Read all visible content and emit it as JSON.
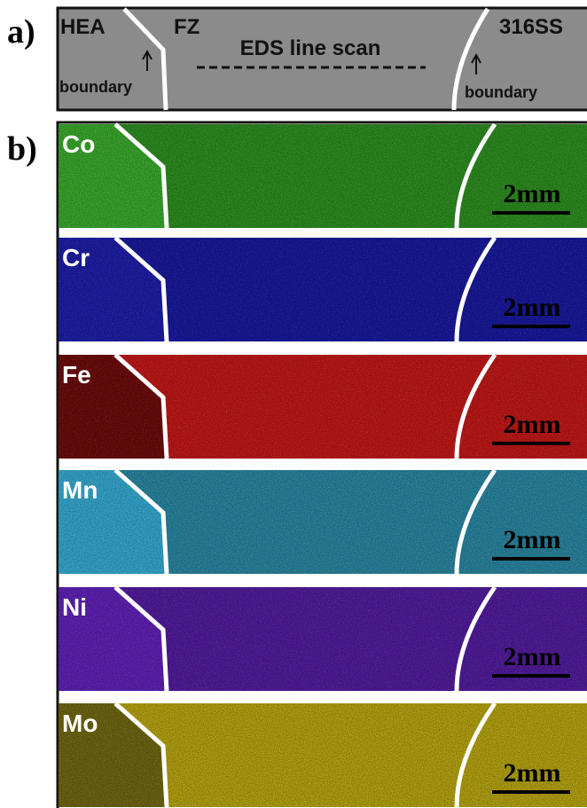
{
  "panel_labels": {
    "a": "a)",
    "b": "b)"
  },
  "panel_a": {
    "left_material": "HEA",
    "fusion_zone": "FZ",
    "title": "EDS line scan",
    "right_material": "316SS",
    "boundary_labels": [
      "boundary",
      "boundary"
    ]
  },
  "maps": [
    {
      "element": "Co",
      "scale_bar": "2mm",
      "color": "#2b8a1e",
      "left_color": "#37a52a"
    },
    {
      "element": "Cr",
      "scale_bar": "2mm",
      "color": "#17179a",
      "left_color": "#1c1ca4"
    },
    {
      "element": "Fe",
      "scale_bar": "2mm",
      "color": "#be1616",
      "left_color": "#6a0a0a"
    },
    {
      "element": "Mn",
      "scale_bar": "2mm",
      "color": "#27839e",
      "left_color": "#33a6cc"
    },
    {
      "element": "Ni",
      "scale_bar": "2mm",
      "color": "#4f1a9a",
      "left_color": "#5d1fb4"
    },
    {
      "element": "Mo",
      "scale_bar": "2mm",
      "color": "#b3a10e",
      "left_color": "#6e6410"
    }
  ]
}
